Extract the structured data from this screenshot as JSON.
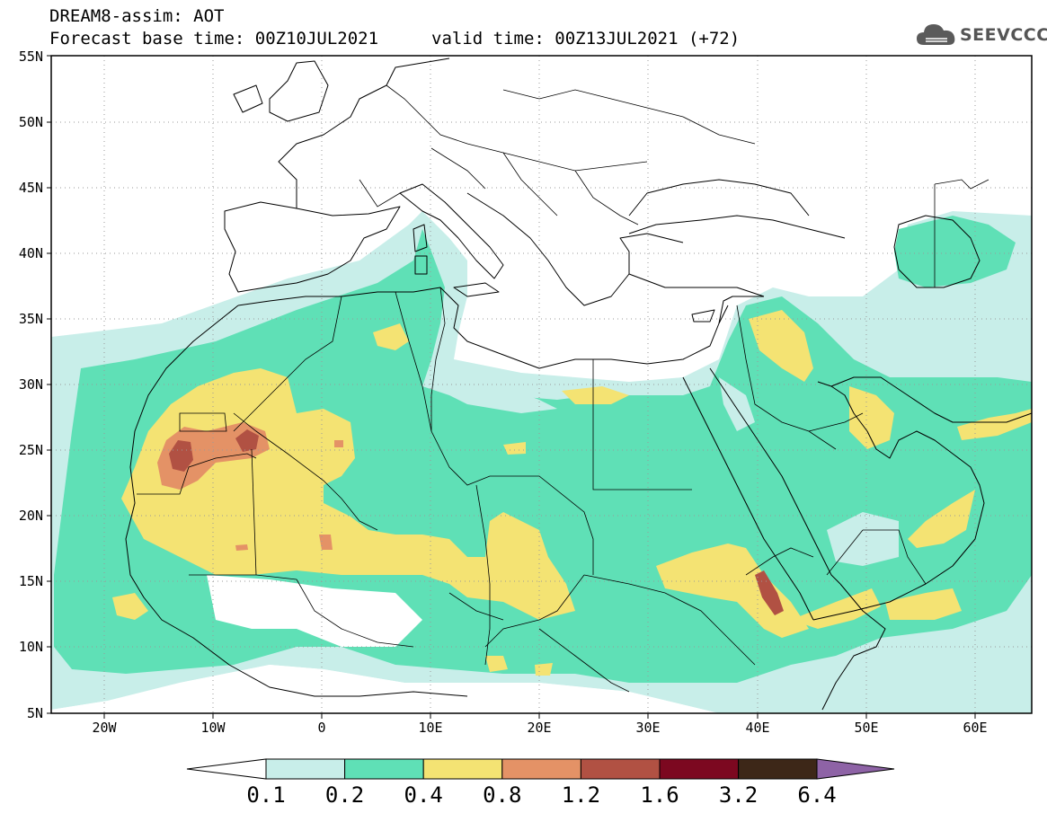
{
  "header": {
    "line1": "DREAM8-assim: AOT",
    "line2": "Forecast base time: 00Z10JUL2021",
    "valid": "valid time: 00Z13JUL2021 (+72)"
  },
  "logo": {
    "text": "SEEVCCC"
  },
  "axes": {
    "lat_labels": [
      "55N",
      "50N",
      "45N",
      "40N",
      "35N",
      "30N",
      "25N",
      "20N",
      "15N",
      "10N",
      "5N"
    ],
    "lon_labels": [
      "20W",
      "10W",
      "0",
      "10E",
      "20E",
      "30E",
      "40E",
      "50E",
      "60E"
    ]
  },
  "colorbar": {
    "labels": [
      "0.1",
      "0.2",
      "0.4",
      "0.8",
      "1.2",
      "1.6",
      "3.2",
      "6.4"
    ],
    "colors": [
      "#c8eee9",
      "#5fe0b6",
      "#f4e373",
      "#e49266",
      "#b15143",
      "#7c0820",
      "#3d2718",
      "#8e63a6"
    ]
  },
  "field_colors": {
    "low": "#c8eee9",
    "medium": "#5fe0b6",
    "high": "#f4e373",
    "very_high": "#e49266",
    "extreme": "#b15143"
  }
}
